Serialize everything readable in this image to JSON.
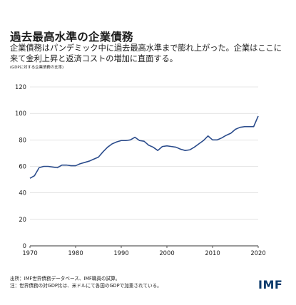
{
  "header": {
    "title": "過去最高水準の企業債務",
    "subtitle": "企業債務はパンデミック中に過去最高水準まで膨れ上がった。企業はここに来て金利上昇と返済コストの増加に直面する。",
    "unit_note": "(GDPに対する企業債務の比率)"
  },
  "chart_data": {
    "type": "line",
    "title": "過去最高水準の企業債務",
    "ylabel": "GDPに対する企業債務の比率",
    "xlabel": "",
    "xlim": [
      1970,
      2020
    ],
    "ylim": [
      0,
      120
    ],
    "xticks": [
      1970,
      1980,
      1990,
      2000,
      2010,
      2020
    ],
    "yticks": [
      0,
      20,
      40,
      60,
      80,
      100,
      120
    ],
    "grid": "horizontal",
    "line_color": "#2b4c8c",
    "x": [
      1970,
      1971,
      1972,
      1973,
      1974,
      1975,
      1976,
      1977,
      1978,
      1979,
      1980,
      1981,
      1982,
      1983,
      1984,
      1985,
      1986,
      1987,
      1988,
      1989,
      1990,
      1991,
      1992,
      1993,
      1994,
      1995,
      1996,
      1997,
      1998,
      1999,
      2000,
      2001,
      2002,
      2003,
      2004,
      2005,
      2006,
      2007,
      2008,
      2009,
      2010,
      2011,
      2012,
      2013,
      2014,
      2015,
      2016,
      2017,
      2018,
      2019,
      2020
    ],
    "y": [
      51,
      53,
      59,
      60,
      60,
      59.5,
      59,
      61,
      61,
      60.5,
      60.5,
      62,
      63,
      64,
      65.5,
      67,
      71,
      74.5,
      77,
      78.5,
      79.5,
      79.5,
      80,
      82,
      79.5,
      79,
      76,
      74.5,
      72,
      75,
      75.5,
      75,
      74.5,
      73,
      72,
      72.5,
      74.5,
      77,
      79.5,
      83,
      80,
      80,
      81.5,
      83.5,
      85,
      88,
      89.5,
      90,
      90,
      90,
      98
    ]
  },
  "footer": {
    "source": "出所：IMF世界債務データベース、IMF職員の試算。",
    "note": "注：世界債務の対GDP比は、米ドルにて各国のGDPで加重されている。",
    "logo_text": "IMF"
  }
}
